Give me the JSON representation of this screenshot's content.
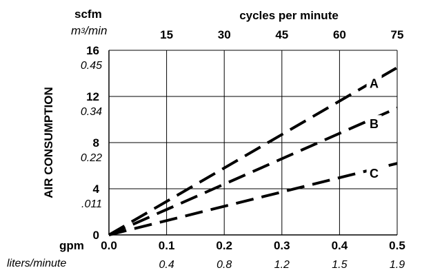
{
  "chart_data": {
    "type": "line",
    "ylabel": "AIR CONSUMPTION",
    "y_units": {
      "primary": "scfm",
      "secondary_prefix": "m",
      "secondary_sup": "3",
      "secondary_suffix": "/min"
    },
    "x_top_label": "cycles per minute",
    "x_bottom_units": {
      "primary": "gpm",
      "secondary": "liters/minute"
    },
    "xlim": [
      0,
      0.5
    ],
    "ylim": [
      0,
      16
    ],
    "grid": true,
    "y_ticks": [
      {
        "value": 0,
        "label": "0",
        "secondary": ""
      },
      {
        "value": 4,
        "label": "4",
        "secondary": ".011"
      },
      {
        "value": 8,
        "label": "8",
        "secondary": "0.22"
      },
      {
        "value": 12,
        "label": "12",
        "secondary": "0.34"
      },
      {
        "value": 16,
        "label": "16",
        "secondary": "0.45"
      }
    ],
    "x_ticks": [
      {
        "value": 0.0,
        "label": "0.0",
        "secondary": "",
        "top": ""
      },
      {
        "value": 0.1,
        "label": "0.1",
        "secondary": "0.4",
        "top": "15"
      },
      {
        "value": 0.2,
        "label": "0.2",
        "secondary": "0.8",
        "top": "30"
      },
      {
        "value": 0.3,
        "label": "0.3",
        "secondary": "1.2",
        "top": "45"
      },
      {
        "value": 0.4,
        "label": "0.4",
        "secondary": "1.5",
        "top": "60"
      },
      {
        "value": 0.5,
        "label": "0.5",
        "secondary": "1.9",
        "top": "75"
      }
    ],
    "series": [
      {
        "name": "A",
        "x": [
          0,
          0.5
        ],
        "y": [
          0,
          14.5
        ],
        "label_at": [
          0.46,
          13.1
        ]
      },
      {
        "name": "B",
        "x": [
          0,
          0.5
        ],
        "y": [
          0,
          11.0
        ],
        "label_at": [
          0.46,
          9.6
        ]
      },
      {
        "name": "C",
        "x": [
          0,
          0.5
        ],
        "y": [
          0,
          6.2
        ],
        "label_at": [
          0.46,
          5.3
        ]
      }
    ]
  }
}
